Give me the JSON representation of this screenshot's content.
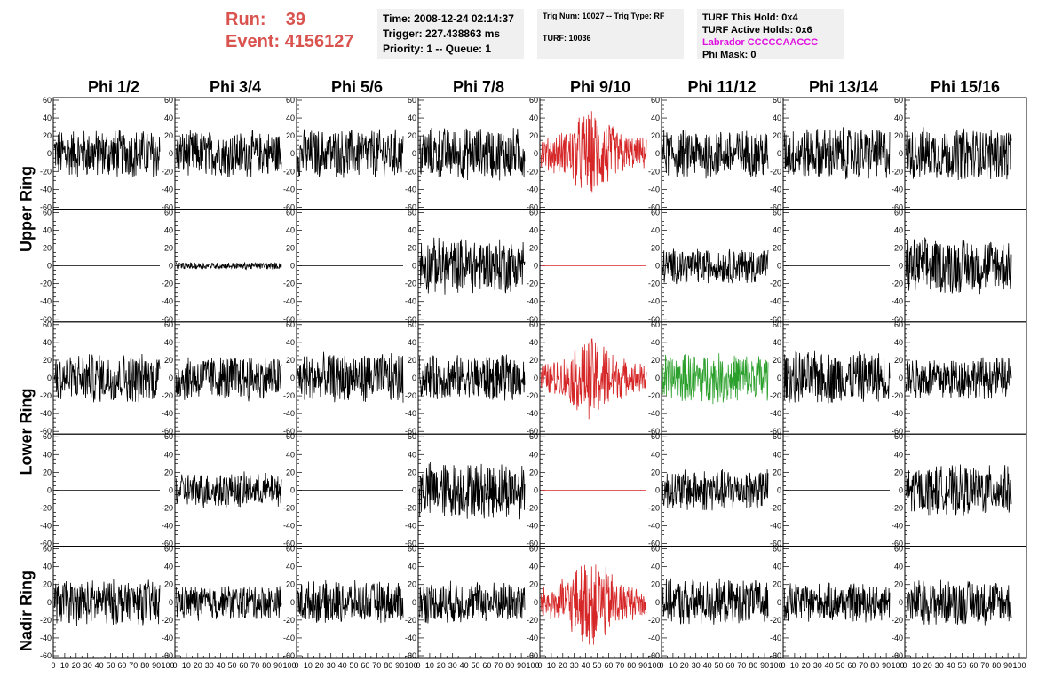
{
  "header": {
    "run_label": "Run:",
    "run_value": "39",
    "event_label": "Event:",
    "event_value": "4156127",
    "time": "Time: 2008-12-24 02:14:37",
    "trigger": "Trigger: 227.438863 ms",
    "priority": "Priority: 1 -- Queue: 1",
    "trig_num": "Trig Num: 10027 -- Trig Type: RF",
    "turf": "TURF: 10036",
    "turf_hold": "TURF This Hold: 0x4",
    "turf_active": "TURF Active Holds: 0x6",
    "labrador": "Labrador CCCCCAACCC",
    "phi_mask": "Phi Mask: 0"
  },
  "columns": [
    "Phi 1/2",
    "Phi 3/4",
    "Phi 5/6",
    "Phi 7/8",
    "Phi 9/10",
    "Phi 11/12",
    "Phi 13/14",
    "Phi 15/16"
  ],
  "row_groups": [
    "Upper Ring",
    "Lower Ring",
    "Nadir Ring"
  ],
  "colors": {
    "normal": "#000000",
    "triggered": "#d62728",
    "special": "#2ca02c",
    "header_red": "#d9534f",
    "labrador": "#e010e0"
  },
  "chart_data": {
    "type": "line",
    "title": "",
    "xlabel": "",
    "ylabel": "",
    "xlim": [
      0,
      100
    ],
    "ylim": [
      -60,
      60
    ],
    "x_ticks": [
      0,
      10,
      20,
      30,
      40,
      50,
      60,
      70,
      80,
      90,
      100
    ],
    "y_ticks": [
      -60,
      -40,
      -20,
      0,
      20,
      40,
      60
    ],
    "x_tick_labels": [
      "0",
      "10",
      "20",
      "30",
      "40",
      "50",
      "60",
      "70",
      "80",
      "90",
      "100"
    ],
    "y_tick_labels": [
      "-60",
      "-40",
      "-20",
      "0",
      "20",
      "40",
      "60"
    ],
    "panel_rows": 5,
    "panel_cols": 8,
    "trace_amplitudes": [
      [
        14,
        13,
        14,
        15,
        16,
        14,
        15,
        15
      ],
      [
        0,
        2,
        0,
        16,
        0,
        10,
        0,
        16
      ],
      [
        14,
        13,
        14,
        13,
        15,
        14,
        15,
        12
      ],
      [
        0,
        10,
        0,
        16,
        0,
        12,
        0,
        14
      ],
      [
        13,
        10,
        12,
        12,
        16,
        13,
        11,
        13
      ]
    ],
    "trace_colors": [
      [
        "normal",
        "normal",
        "normal",
        "normal",
        "triggered",
        "normal",
        "normal",
        "normal"
      ],
      [
        "normal",
        "normal",
        "normal",
        "normal",
        "triggered",
        "normal",
        "normal",
        "normal"
      ],
      [
        "normal",
        "normal",
        "normal",
        "normal",
        "triggered",
        "special",
        "normal",
        "normal"
      ],
      [
        "normal",
        "normal",
        "normal",
        "normal",
        "triggered",
        "normal",
        "normal",
        "normal"
      ],
      [
        "normal",
        "normal",
        "normal",
        "normal",
        "triggered",
        "normal",
        "normal",
        "normal"
      ]
    ]
  }
}
